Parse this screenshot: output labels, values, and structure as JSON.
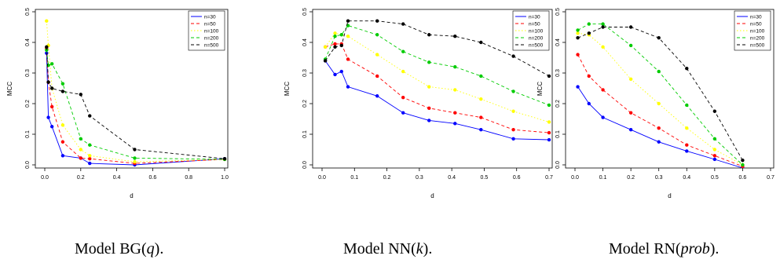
{
  "captions": [
    {
      "pre": "Model BG(",
      "param": "q",
      "post": ")."
    },
    {
      "pre": "Model NN(",
      "param": "k",
      "post": ")."
    },
    {
      "pre": "Model RN(",
      "param": "prob",
      "post": ")."
    }
  ],
  "chart_data": [
    {
      "type": "line",
      "xlabel": "d",
      "ylabel": "MCC",
      "xlim": [
        0,
        1.0
      ],
      "ylim": [
        0,
        0.5
      ],
      "xticks": [
        "0.0",
        "0.2",
        "0.4",
        "0.6",
        "0.8",
        "1.0"
      ],
      "yticks": [
        "0.0",
        "0.1",
        "0.2",
        "0.3",
        "0.4",
        "0.5"
      ],
      "legend_position": "top-right",
      "series": [
        {
          "name": "n=30",
          "color": "#0000ff",
          "dash": "solid",
          "x": [
            0.01,
            0.02,
            0.04,
            0.1,
            0.2,
            0.25,
            0.5,
            1.0
          ],
          "y": [
            0.365,
            0.155,
            0.125,
            0.03,
            0.022,
            0.005,
            0.0,
            0.02
          ]
        },
        {
          "name": "n=50",
          "color": "#ff0000",
          "dash": "dashed",
          "x": [
            0.01,
            0.02,
            0.04,
            0.1,
            0.2,
            0.25,
            0.5,
            1.0
          ],
          "y": [
            0.38,
            0.27,
            0.19,
            0.075,
            0.022,
            0.02,
            0.005,
            0.018
          ]
        },
        {
          "name": "n=100",
          "color": "#ffff00",
          "dash": "dotted",
          "x": [
            0.01,
            0.02,
            0.04,
            0.1,
            0.2,
            0.25,
            0.5,
            1.0
          ],
          "y": [
            0.47,
            0.39,
            0.25,
            0.13,
            0.05,
            0.03,
            0.01,
            0.018
          ]
        },
        {
          "name": "n=200",
          "color": "#00cc00",
          "dash": "dashed",
          "x": [
            0.01,
            0.02,
            0.04,
            0.1,
            0.2,
            0.25,
            0.5,
            1.0
          ],
          "y": [
            0.375,
            0.325,
            0.33,
            0.265,
            0.085,
            0.065,
            0.022,
            0.018
          ]
        },
        {
          "name": "n=500",
          "color": "#000000",
          "dash": "dashed",
          "x": [
            0.01,
            0.02,
            0.04,
            0.1,
            0.2,
            0.25,
            0.5,
            1.0
          ],
          "y": [
            0.385,
            0.27,
            0.25,
            0.24,
            0.23,
            0.16,
            0.05,
            0.02
          ]
        }
      ]
    },
    {
      "type": "line",
      "xlabel": "d",
      "ylabel": "MCC",
      "xlim": [
        0,
        0.7
      ],
      "ylim": [
        0,
        0.5
      ],
      "xticks": [
        "0.0",
        "0.1",
        "0.2",
        "0.3",
        "0.4",
        "0.5",
        "0.6",
        "0.7"
      ],
      "yticks": [
        "0.0",
        "0.1",
        "0.2",
        "0.3",
        "0.4",
        "0.5"
      ],
      "legend_position": "top-right",
      "series": [
        {
          "name": "n=30",
          "color": "#0000ff",
          "dash": "solid",
          "x": [
            0.01,
            0.04,
            0.06,
            0.08,
            0.17,
            0.25,
            0.33,
            0.41,
            0.49,
            0.59,
            0.7
          ],
          "y": [
            0.34,
            0.295,
            0.305,
            0.255,
            0.225,
            0.17,
            0.145,
            0.135,
            0.115,
            0.085,
            0.082
          ]
        },
        {
          "name": "n=50",
          "color": "#ff0000",
          "dash": "dashed",
          "x": [
            0.01,
            0.04,
            0.06,
            0.08,
            0.17,
            0.25,
            0.33,
            0.41,
            0.49,
            0.59,
            0.7
          ],
          "y": [
            0.385,
            0.395,
            0.395,
            0.345,
            0.29,
            0.22,
            0.185,
            0.17,
            0.155,
            0.115,
            0.105
          ]
        },
        {
          "name": "n=100",
          "color": "#ffff00",
          "dash": "dotted",
          "x": [
            0.01,
            0.04,
            0.06,
            0.08,
            0.17,
            0.25,
            0.33,
            0.41,
            0.49,
            0.59,
            0.7
          ],
          "y": [
            0.385,
            0.43,
            0.425,
            0.42,
            0.36,
            0.305,
            0.255,
            0.245,
            0.215,
            0.175,
            0.14
          ]
        },
        {
          "name": "n=200",
          "color": "#00cc00",
          "dash": "dashed",
          "x": [
            0.01,
            0.04,
            0.06,
            0.08,
            0.17,
            0.25,
            0.33,
            0.41,
            0.49,
            0.59,
            0.7
          ],
          "y": [
            0.345,
            0.42,
            0.425,
            0.455,
            0.425,
            0.37,
            0.335,
            0.32,
            0.29,
            0.24,
            0.195
          ]
        },
        {
          "name": "n=500",
          "color": "#000000",
          "dash": "dashed",
          "x": [
            0.01,
            0.04,
            0.06,
            0.08,
            0.17,
            0.25,
            0.33,
            0.41,
            0.49,
            0.59,
            0.7
          ],
          "y": [
            0.34,
            0.385,
            0.39,
            0.47,
            0.47,
            0.46,
            0.425,
            0.42,
            0.4,
            0.355,
            0.29
          ]
        }
      ]
    },
    {
      "type": "line",
      "xlabel": "d",
      "ylabel": "MCC",
      "xlim": [
        0,
        0.7
      ],
      "ylim": [
        0,
        0.5
      ],
      "xticks": [
        "0.0",
        "0.1",
        "0.2",
        "0.3",
        "0.4",
        "0.5",
        "0.6",
        "0.7"
      ],
      "yticks": [
        "0.0",
        "0.1",
        "0.2",
        "0.3",
        "0.4",
        "0.5"
      ],
      "legend_position": "top-right",
      "series": [
        {
          "name": "n=30",
          "color": "#0000ff",
          "dash": "solid",
          "x": [
            0.01,
            0.05,
            0.1,
            0.2,
            0.3,
            0.4,
            0.5,
            0.6,
            0.66
          ],
          "y": [
            0.255,
            0.2,
            0.155,
            0.115,
            0.075,
            0.045,
            0.018,
            -0.01,
            -0.04
          ]
        },
        {
          "name": "n=50",
          "color": "#ff0000",
          "dash": "dashed",
          "x": [
            0.01,
            0.05,
            0.1,
            0.2,
            0.3,
            0.4,
            0.5,
            0.6
          ],
          "y": [
            0.36,
            0.29,
            0.245,
            0.17,
            0.12,
            0.065,
            0.03,
            -0.005
          ]
        },
        {
          "name": "n=100",
          "color": "#ffff00",
          "dash": "dotted",
          "x": [
            0.01,
            0.05,
            0.1,
            0.2,
            0.3,
            0.4,
            0.5,
            0.6
          ],
          "y": [
            0.43,
            0.425,
            0.385,
            0.28,
            0.2,
            0.12,
            0.05,
            0.0
          ]
        },
        {
          "name": "n=200",
          "color": "#00cc00",
          "dash": "dashed",
          "x": [
            0.01,
            0.05,
            0.1,
            0.2,
            0.3,
            0.4,
            0.5,
            0.6
          ],
          "y": [
            0.44,
            0.46,
            0.46,
            0.39,
            0.305,
            0.195,
            0.085,
            0.0
          ]
        },
        {
          "name": "n=500",
          "color": "#000000",
          "dash": "dashed",
          "x": [
            0.01,
            0.05,
            0.1,
            0.2,
            0.3,
            0.4,
            0.5,
            0.6
          ],
          "y": [
            0.415,
            0.43,
            0.45,
            0.45,
            0.415,
            0.315,
            0.175,
            0.015
          ]
        }
      ]
    }
  ]
}
